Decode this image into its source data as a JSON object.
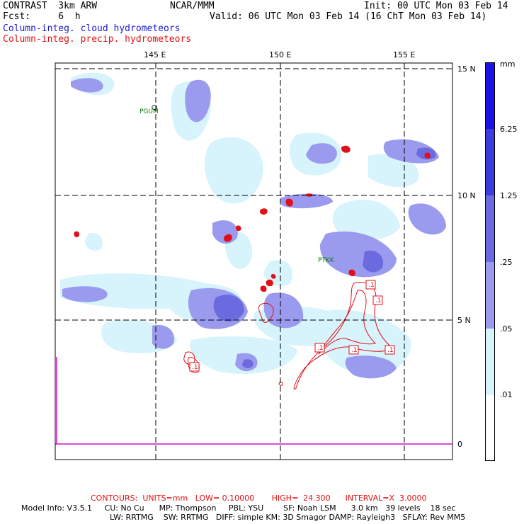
{
  "header": {
    "model": "CONTRAST  3km ARW",
    "fcst": "Fcst:     6  h",
    "org": "NCAR/MMM",
    "init": "Init: 00 UTC Mon 03 Feb 14",
    "valid": "Valid: 06 UTC Mon 03 Feb 14 (16 ChT Mon 03 Feb 14)",
    "field1": "Column-integ. cloud hydrometeors",
    "field2": "Column-integ. precip. hydrometeors"
  },
  "map": {
    "lon_labels": [
      "145 E",
      "150 E",
      "155 E"
    ],
    "lat_labels": [
      "15 N",
      "10 N",
      "5 N",
      "0"
    ],
    "stations": [
      "PGUM",
      "PTKK"
    ],
    "contour_label": ".1"
  },
  "colorbar": {
    "unit": "mm",
    "labels": [
      "6.25",
      "1.25",
      ".25",
      ".05",
      ".01"
    ],
    "colors": [
      "#1c12e8",
      "#3c3ce0",
      "#6b6bdf",
      "#9a9aee",
      "#d7f3fb",
      "#ffffff"
    ]
  },
  "footer": {
    "contours": "CONTOURS:  UNITS=mm   LOW= 0.10000       HIGH=  24.300      INTERVAL=X  3.0000",
    "model_info_1": "Model Info: V3.5.1     CU: No Cu      MP: Thompson     PBL: YSU        SF: Noah LSM      3.0 km   39 levels    18 sec",
    "model_info_2": "LW: RRTMG    SW: RRTMG   DIFF: simple KM: 3D Smagor DAMP: Rayleigh3   SFLAY: Rev MM5"
  }
}
